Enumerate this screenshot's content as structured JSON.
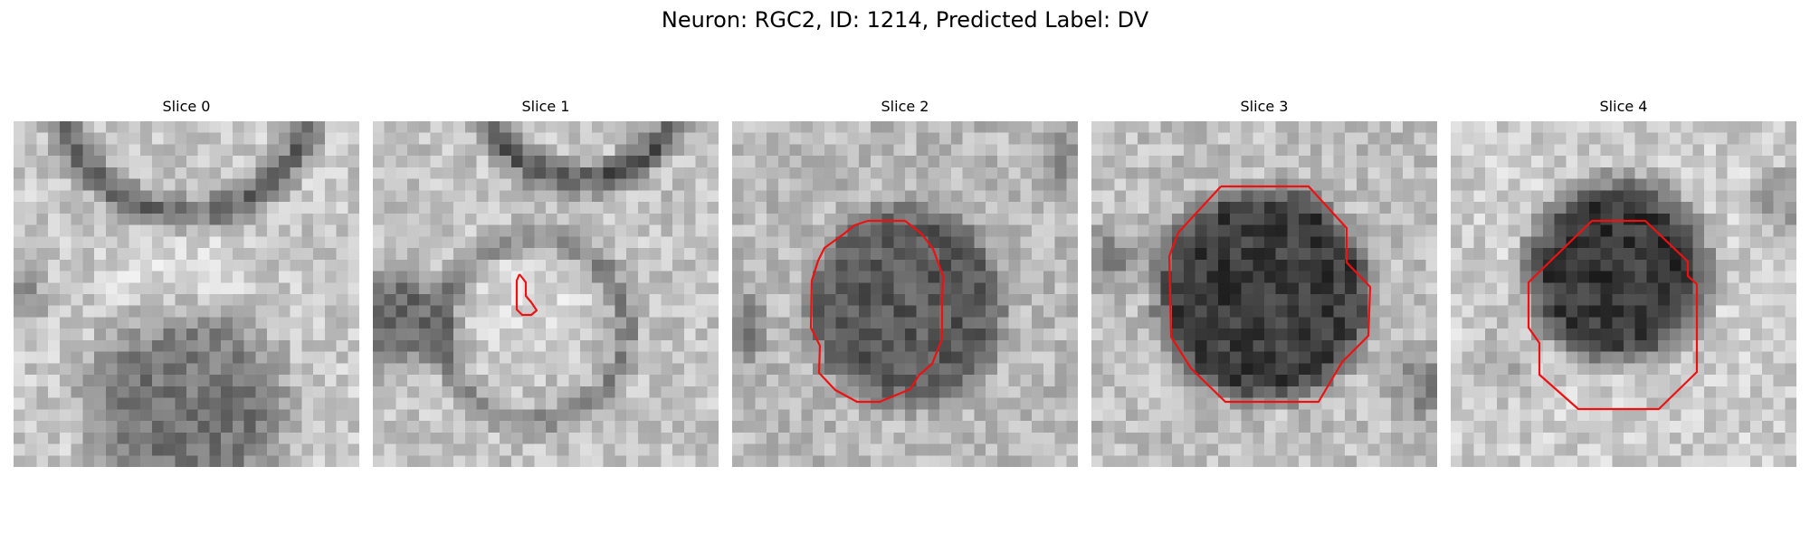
{
  "figure": {
    "title": "Neuron: RGC2, ID: 1214, Predicted Label: DV",
    "contour_color": "#ee1111"
  },
  "slices": [
    {
      "label": "Slice 0"
    },
    {
      "label": "Slice 1"
    },
    {
      "label": "Slice 2"
    },
    {
      "label": "Slice 3"
    },
    {
      "label": "Slice 4"
    }
  ]
}
